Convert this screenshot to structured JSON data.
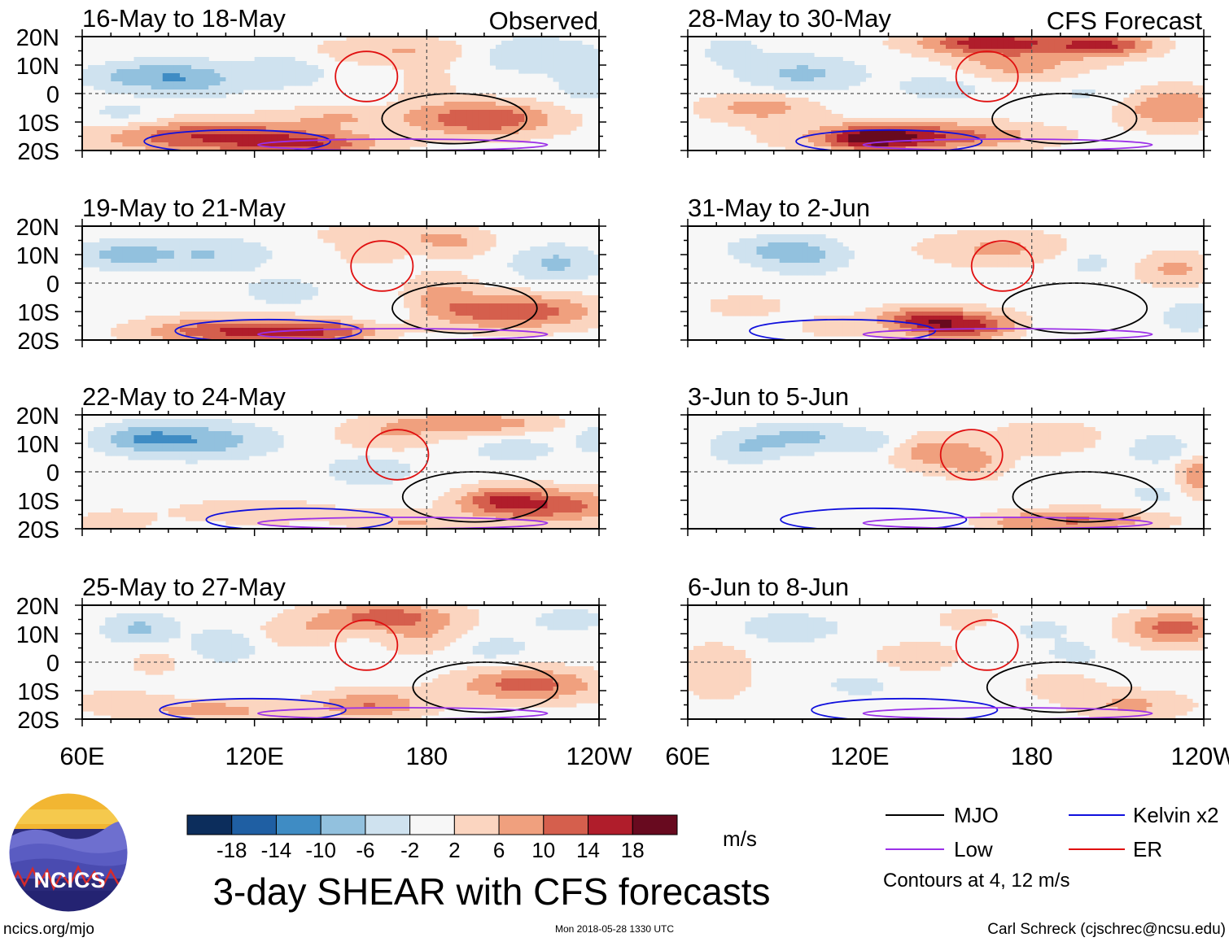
{
  "title": "3-day SHEAR with CFS forecasts",
  "column_headers": {
    "left": "Observed",
    "right": "CFS Forecast"
  },
  "footer": {
    "left": "ncics.org/mjo",
    "middle": "Mon 2018-05-28 1330 UTC",
    "right": "Carl Schreck (cjschrec@ncsu.edu)"
  },
  "logo": {
    "text": "NCICS"
  },
  "legend": {
    "mjo": "MJO",
    "kelvin": "Kelvin x2",
    "low": "Low",
    "er": "ER",
    "contours_note": "Contours at 4, 12 m/s",
    "colors": {
      "mjo": "#000000",
      "kelvin": "#1010dd",
      "low": "#9b30e8",
      "er": "#e01010"
    }
  },
  "colorbar": {
    "units": "m/s",
    "labels": [
      "-18",
      "-14",
      "-10",
      "-6",
      "-2",
      "2",
      "6",
      "10",
      "14",
      "18"
    ],
    "colors": [
      "#0c2d5c",
      "#1f5fa3",
      "#3f8cc4",
      "#92c1de",
      "#cfe2ef",
      "#f7f7f7",
      "#fbd5c0",
      "#f0a07e",
      "#d55f4d",
      "#b01d2b",
      "#680a1f"
    ]
  },
  "chart_data": {
    "type": "heatmap",
    "description_variable": "3-day SHEAR",
    "x_ticks": [
      "60E",
      "120E",
      "180",
      "120W"
    ],
    "y_ticks": [
      "20N",
      "10N",
      "0",
      "10S",
      "20S"
    ],
    "xlim": [
      60,
      240
    ],
    "ylim": [
      -20,
      20
    ],
    "panels": [
      {
        "id": "obs-1",
        "column": "Observed",
        "title": "16-May to 18-May",
        "blobs": [
          [
            105,
            -15,
            40,
            6,
            14
          ],
          [
            140,
            -18,
            25,
            4,
            10
          ],
          [
            200,
            -9,
            25,
            6,
            14
          ],
          [
            150,
            -8,
            20,
            4,
            5
          ],
          [
            170,
            15,
            30,
            5,
            6
          ],
          [
            80,
            6,
            18,
            5,
            -8
          ],
          [
            100,
            5,
            15,
            6,
            -7
          ],
          [
            130,
            8,
            15,
            6,
            -5
          ],
          [
            215,
            14,
            20,
            6,
            -6
          ],
          [
            235,
            5,
            10,
            8,
            -5
          ],
          [
            75,
            -8,
            15,
            5,
            -4
          ],
          [
            180,
            3,
            10,
            8,
            4
          ]
        ]
      },
      {
        "id": "obs-2",
        "column": "Observed",
        "title": "19-May to 21-May",
        "blobs": [
          [
            112,
            -17,
            30,
            5,
            14
          ],
          [
            145,
            -17,
            20,
            4,
            10
          ],
          [
            210,
            -10,
            28,
            6,
            14
          ],
          [
            185,
            -3,
            12,
            7,
            6
          ],
          [
            190,
            14,
            14,
            5,
            6
          ],
          [
            165,
            17,
            25,
            4,
            5
          ],
          [
            160,
            10,
            12,
            4,
            4
          ],
          [
            75,
            10,
            15,
            5,
            -8
          ],
          [
            105,
            10,
            20,
            6,
            -6
          ],
          [
            225,
            7,
            15,
            6,
            -7
          ],
          [
            130,
            -3,
            15,
            5,
            -4
          ],
          [
            165,
            -10,
            10,
            4,
            -3
          ]
        ]
      },
      {
        "id": "obs-3",
        "column": "Observed",
        "title": "22-May to 24-May",
        "blobs": [
          [
            195,
            17,
            28,
            4,
            10
          ],
          [
            225,
            -12,
            25,
            6,
            12
          ],
          [
            205,
            -10,
            15,
            5,
            10
          ],
          [
            165,
            12,
            18,
            6,
            5
          ],
          [
            120,
            -14,
            35,
            5,
            4
          ],
          [
            70,
            -18,
            12,
            4,
            5
          ],
          [
            175,
            -18,
            20,
            4,
            6
          ],
          [
            100,
            11,
            25,
            6,
            -9
          ],
          [
            80,
            12,
            15,
            5,
            -6
          ],
          [
            160,
            1,
            15,
            6,
            -5
          ],
          [
            210,
            8,
            15,
            5,
            -4
          ],
          [
            240,
            12,
            10,
            6,
            -4
          ]
        ]
      },
      {
        "id": "obs-4",
        "column": "Observed",
        "title": "25-May to 27-May",
        "blobs": [
          [
            165,
            16,
            25,
            5,
            12
          ],
          [
            180,
            8,
            15,
            6,
            6
          ],
          [
            215,
            -8,
            25,
            6,
            12
          ],
          [
            160,
            -15,
            20,
            5,
            10
          ],
          [
            105,
            -17,
            25,
            4,
            8
          ],
          [
            72,
            -14,
            15,
            5,
            4
          ],
          [
            85,
            0,
            8,
            4,
            5
          ],
          [
            135,
            10,
            15,
            5,
            5
          ],
          [
            80,
            12,
            12,
            5,
            -7
          ],
          [
            110,
            6,
            12,
            6,
            -5
          ],
          [
            200,
            5,
            18,
            5,
            -4
          ],
          [
            230,
            15,
            15,
            4,
            -4
          ]
        ]
      },
      {
        "id": "cfs-1",
        "column": "CFS Forecast",
        "title": "28-May to 30-May",
        "blobs": [
          [
            165,
            18,
            25,
            4,
            16
          ],
          [
            205,
            17,
            18,
            4,
            14
          ],
          [
            140,
            -15,
            40,
            5,
            14
          ],
          [
            125,
            -16,
            15,
            4,
            12
          ],
          [
            175,
            10,
            25,
            6,
            8
          ],
          [
            230,
            -5,
            20,
            7,
            10
          ],
          [
            85,
            -5,
            20,
            5,
            8
          ],
          [
            100,
            7,
            20,
            6,
            -7
          ],
          [
            150,
            3,
            18,
            6,
            -4
          ],
          [
            200,
            0,
            15,
            6,
            -3
          ],
          [
            75,
            15,
            10,
            5,
            -4
          ]
        ]
      },
      {
        "id": "cfs-2",
        "column": "CFS Forecast",
        "title": "31-May to 2-Jun",
        "blobs": [
          [
            155,
            -15,
            22,
            5,
            16
          ],
          [
            140,
            -12,
            15,
            4,
            8
          ],
          [
            170,
            12,
            28,
            6,
            7
          ],
          [
            230,
            5,
            15,
            6,
            7
          ],
          [
            80,
            -8,
            15,
            4,
            4
          ],
          [
            110,
            -15,
            12,
            4,
            4
          ],
          [
            100,
            10,
            15,
            6,
            -8
          ],
          [
            85,
            12,
            12,
            4,
            -4
          ],
          [
            200,
            8,
            15,
            6,
            -4
          ],
          [
            235,
            -12,
            10,
            5,
            -5
          ],
          [
            185,
            -16,
            15,
            4,
            -3
          ]
        ]
      },
      {
        "id": "cfs-3",
        "column": "CFS Forecast",
        "title": "3-Jun to 5-Jun",
        "blobs": [
          [
            145,
            7,
            15,
            6,
            8
          ],
          [
            160,
            3,
            12,
            6,
            6
          ],
          [
            185,
            12,
            20,
            6,
            5
          ],
          [
            200,
            -17,
            25,
            4,
            10
          ],
          [
            175,
            -18,
            15,
            4,
            5
          ],
          [
            238,
            -2,
            8,
            8,
            9
          ],
          [
            100,
            12,
            20,
            5,
            -7
          ],
          [
            80,
            8,
            12,
            5,
            -5
          ],
          [
            125,
            10,
            10,
            4,
            -4
          ],
          [
            225,
            8,
            12,
            5,
            -5
          ],
          [
            225,
            -8,
            15,
            5,
            -3
          ]
        ]
      },
      {
        "id": "cfs-4",
        "column": "CFS Forecast",
        "title": "6-Jun to 8-Jun",
        "blobs": [
          [
            230,
            12,
            18,
            6,
            12
          ],
          [
            70,
            -3,
            12,
            10,
            6
          ],
          [
            140,
            2,
            18,
            6,
            4
          ],
          [
            215,
            -15,
            20,
            5,
            7
          ],
          [
            190,
            -8,
            15,
            5,
            4
          ],
          [
            160,
            15,
            15,
            5,
            4
          ],
          [
            95,
            12,
            18,
            5,
            -5
          ],
          [
            180,
            12,
            18,
            5,
            -3
          ],
          [
            120,
            -8,
            15,
            5,
            -3
          ],
          [
            195,
            3,
            12,
            5,
            -3
          ]
        ]
      }
    ]
  }
}
